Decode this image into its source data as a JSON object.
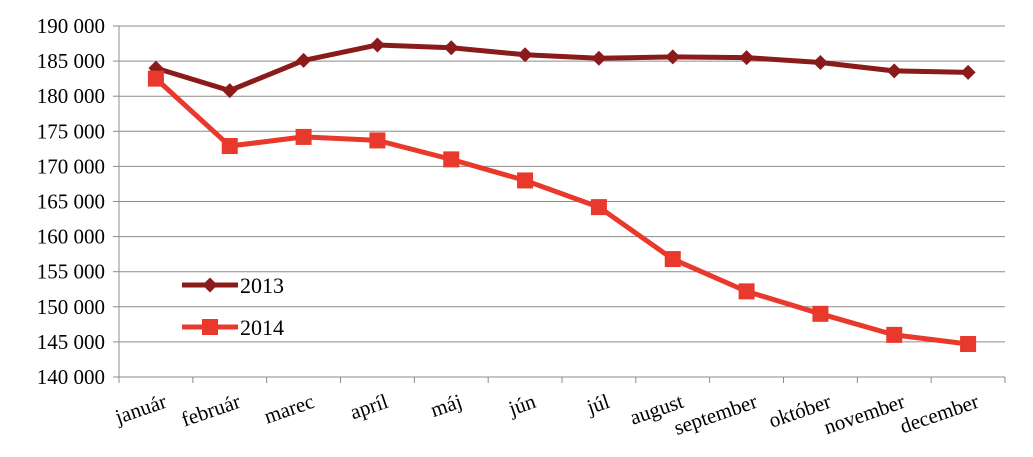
{
  "chart_data": {
    "type": "line",
    "title": "",
    "xlabel": "",
    "ylabel": "",
    "categories": [
      "január",
      "február",
      "marec",
      "apríl",
      "máj",
      "jún",
      "júl",
      "august",
      "september",
      "október",
      "november",
      "december"
    ],
    "ylim": [
      140000,
      190000
    ],
    "y_ticks": [
      140000,
      145000,
      150000,
      155000,
      160000,
      165000,
      170000,
      175000,
      180000,
      185000,
      190000
    ],
    "y_tick_labels": [
      "140 000",
      "145 000",
      "150 000",
      "155 000",
      "160 000",
      "165 000",
      "170 000",
      "175 000",
      "180 000",
      "185 000",
      "190 000"
    ],
    "grid": "horizontal",
    "legend_position": "bottom-left",
    "series": [
      {
        "name": "2013",
        "color": "#8b1a1a",
        "marker": "diamond",
        "values": [
          184000,
          180800,
          185100,
          187300,
          186900,
          185900,
          185400,
          185600,
          185500,
          184800,
          183600,
          183400
        ]
      },
      {
        "name": "2014",
        "color": "#e8392c",
        "marker": "square",
        "values": [
          182500,
          172900,
          174200,
          173700,
          171000,
          168000,
          164200,
          156800,
          152200,
          149000,
          146000,
          144700
        ]
      }
    ]
  }
}
